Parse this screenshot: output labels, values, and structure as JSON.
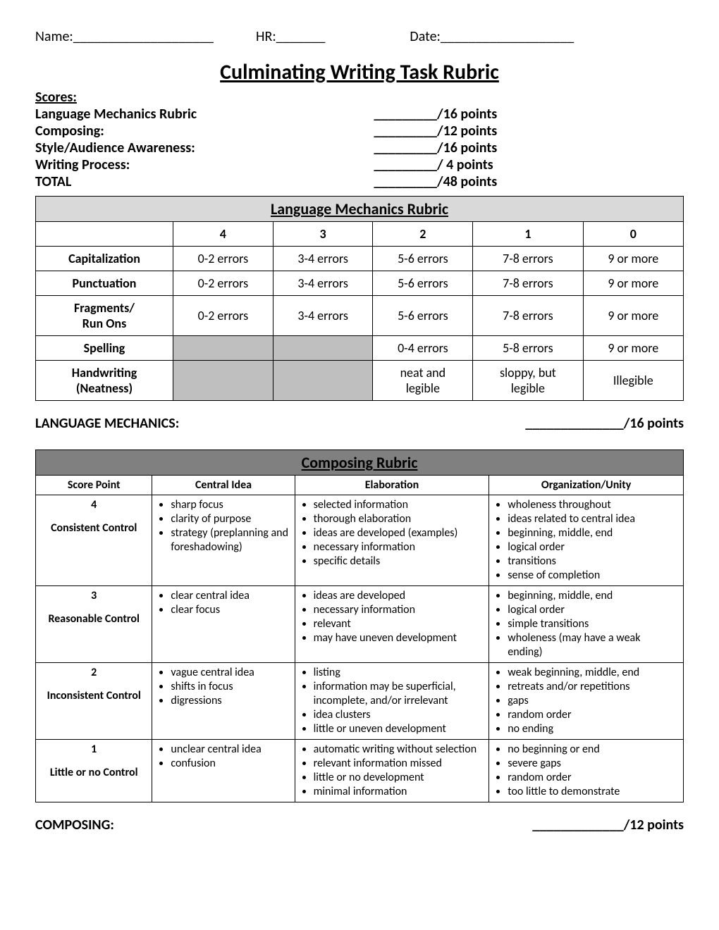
{
  "header": {
    "name_label": "Name:",
    "hr_label": "HR:",
    "date_label": "Date:",
    "blank_long": "____________________",
    "blank_short": "_______",
    "blank_med": "___________________"
  },
  "title": "Culminating Writing Task Rubric",
  "scores": {
    "label": "Scores:",
    "rows": [
      {
        "label": "Language Mechanics Rubric",
        "pts": "/16 points"
      },
      {
        "label": "Composing:",
        "pts": "/12 points"
      },
      {
        "label": "Style/Audience Awareness:",
        "pts": "/16 points"
      },
      {
        "label": "Writing Process:",
        "pts": "/ 4  points"
      },
      {
        "label": "TOTAL",
        "pts": "/48 points"
      }
    ],
    "blank": "_________"
  },
  "rubric1": {
    "title": "Language Mechanics Rubric",
    "cols": [
      "4",
      "3",
      "2",
      "1",
      "0"
    ],
    "rows": [
      {
        "label": "Capitalization",
        "cells": [
          "0-2 errors",
          "3-4 errors",
          "5-6 errors",
          "7-8 errors",
          "9 or more"
        ],
        "shade": [
          false,
          false,
          false,
          false,
          false
        ]
      },
      {
        "label": "Punctuation",
        "cells": [
          "0-2 errors",
          "3-4 errors",
          "5-6 errors",
          "7-8 errors",
          "9 or more"
        ],
        "shade": [
          false,
          false,
          false,
          false,
          false
        ]
      },
      {
        "label": "Fragments/\nRun Ons",
        "cells": [
          "0-2 errors",
          "3-4 errors",
          "5-6 errors",
          "7-8 errors",
          "9 or more"
        ],
        "shade": [
          false,
          false,
          false,
          false,
          false
        ]
      },
      {
        "label": "Spelling",
        "cells": [
          "",
          "",
          "0-4 errors",
          "5-8 errors",
          "9 or more"
        ],
        "shade": [
          true,
          true,
          false,
          false,
          false
        ]
      },
      {
        "label": "Handwriting\n(Neatness)",
        "cells": [
          "",
          "",
          "neat and\nlegible",
          "sloppy, but\nlegible",
          "Illegible"
        ],
        "shade": [
          true,
          true,
          false,
          false,
          false
        ]
      }
    ],
    "score_label": "LANGUAGE MECHANICS:",
    "score_blank": "______________",
    "score_pts": "/16 points"
  },
  "rubric2": {
    "title": "Composing Rubric",
    "cols": [
      "Score Point",
      "Central Idea",
      "Elaboration",
      "Organization/Unity"
    ],
    "rows": [
      {
        "score": "4",
        "desc": "Consistent Control",
        "central": [
          "sharp focus",
          "clarity of purpose",
          "strategy (preplanning and foreshadowing)"
        ],
        "elab": [
          "selected information",
          "thorough elaboration",
          "ideas are developed (examples)",
          "necessary information",
          "specific details"
        ],
        "org": [
          "wholeness throughout",
          "ideas related to central idea",
          "beginning, middle, end",
          "logical order",
          "transitions",
          "sense of completion"
        ]
      },
      {
        "score": "3",
        "desc": "Reasonable Control",
        "central": [
          "clear central idea",
          "clear focus"
        ],
        "elab": [
          "ideas are developed",
          "necessary information",
          "relevant",
          "may have uneven development"
        ],
        "org": [
          "beginning, middle, end",
          "logical order",
          "simple transitions",
          "wholeness (may have a weak ending)"
        ]
      },
      {
        "score": "2",
        "desc": "Inconsistent Control",
        "central": [
          "vague central idea",
          "shifts in focus",
          "digressions"
        ],
        "elab": [
          "listing",
          "information may be superficial, incomplete, and/or irrelevant",
          "idea clusters",
          "little or uneven  development"
        ],
        "org": [
          "weak beginning, middle, end",
          "retreats and/or  repetitions",
          "gaps",
          "random order",
          "no ending"
        ]
      },
      {
        "score": "1",
        "desc": "Little or no Control",
        "central": [
          "unclear central idea",
          "confusion"
        ],
        "elab": [
          "automatic writing without selection",
          "relevant information missed",
          "little or no development",
          "minimal information"
        ],
        "org": [
          "no beginning or end",
          "severe gaps",
          "random order",
          "too little to demonstrate"
        ]
      }
    ],
    "score_label": "COMPOSING:",
    "score_blank": "_____________",
    "score_pts": "/12 points"
  }
}
